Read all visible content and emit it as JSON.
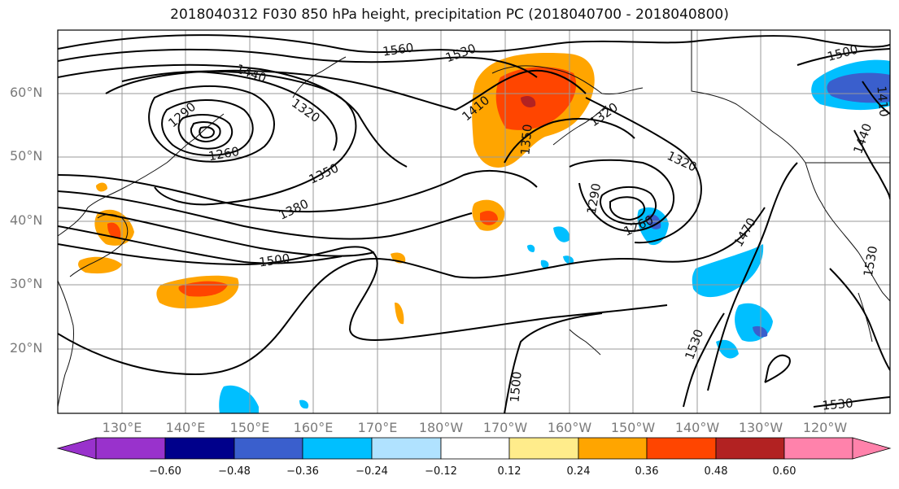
{
  "title": "2018040312 F030 850 hPa height, precipitation PC (2018040700 - 2018040800)",
  "lat_labels": [
    "60°N",
    "50°N",
    "40°N",
    "30°N",
    "20°N"
  ],
  "lon_labels": [
    "130°E",
    "140°E",
    "150°E",
    "160°E",
    "170°E",
    "180°W",
    "170°W",
    "160°W",
    "150°W",
    "140°W",
    "130°W",
    "120°W"
  ],
  "contour_labels": [
    "1560",
    "1530",
    "1500",
    "1440",
    "1410",
    "1320",
    "1290",
    "1260",
    "1350",
    "1380",
    "1500",
    "1410",
    "1350",
    "1320",
    "1320",
    "1290",
    "1260",
    "1470",
    "1530",
    "1500",
    "1530",
    "1440",
    "1410",
    "1500",
    "1530"
  ],
  "colorbar": {
    "ticks": [
      "−0.60",
      "−0.48",
      "−0.36",
      "−0.24",
      "−0.12",
      "0.12",
      "0.24",
      "0.36",
      "0.48",
      "0.60"
    ],
    "colors": [
      "#9932cc",
      "#00008b",
      "#3a5fcd",
      "#00bfff",
      "#b0e2ff",
      "#ffffff",
      "#ffec8b",
      "#ffa500",
      "#ff4500",
      "#b22222",
      "#ff82ab"
    ]
  }
}
